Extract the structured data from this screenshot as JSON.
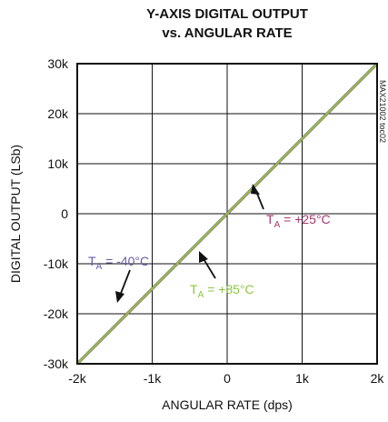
{
  "chart_data": {
    "type": "line",
    "title_line1": "Y-AXIS DIGITAL OUTPUT",
    "title_line2": "vs. ANGULAR RATE",
    "xlabel": "ANGULAR RATE (dps)",
    "ylabel": "DIGITAL OUTPUT (LSb)",
    "xlim": [
      -2000,
      2000
    ],
    "ylim": [
      -30000,
      30000
    ],
    "xticks": [
      -2000,
      -1000,
      0,
      1000,
      2000
    ],
    "xtick_labels": [
      "-2k",
      "-1k",
      "0",
      "1k",
      "2k"
    ],
    "yticks": [
      30000,
      20000,
      10000,
      0,
      -10000,
      -20000,
      -30000
    ],
    "ytick_labels": [
      "30k",
      "20k",
      "10k",
      "0",
      "-10k",
      "-20k",
      "-30k"
    ],
    "grid": true,
    "series": [
      {
        "name": "TA = -40°C",
        "color": "#6a5aa8",
        "x": [
          -2000,
          2000
        ],
        "y": [
          -30000,
          30000
        ]
      },
      {
        "name": "TA = +25°C",
        "color": "#a8356e",
        "x": [
          -2000,
          2000
        ],
        "y": [
          -30000,
          30000
        ]
      },
      {
        "name": "TA = +85°C",
        "color": "#8cc63f",
        "x": [
          -2000,
          2000
        ],
        "y": [
          -30000,
          30000
        ]
      }
    ],
    "annotations": [
      {
        "main": "T",
        "sub": "A",
        "rest": " = +25°C",
        "color": "#a8356e"
      },
      {
        "main": "T",
        "sub": "A",
        "rest": " = -40°C",
        "color": "#6a5aa8"
      },
      {
        "main": "T",
        "sub": "A",
        "rest": " = +85°C",
        "color": "#8cc63f"
      }
    ],
    "watermark": "MAX21002 toc02"
  }
}
